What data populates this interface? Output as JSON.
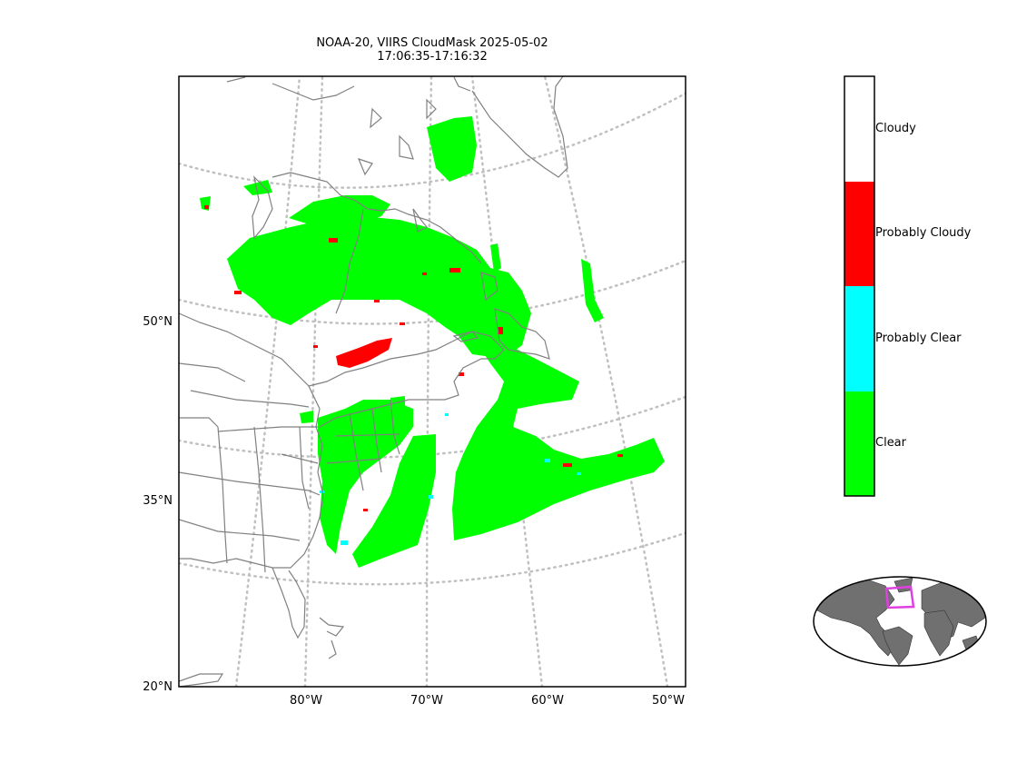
{
  "title": {
    "line1": "NOAA-20, VIIRS CloudMask 2025-05-02",
    "line2": "17:06:35-17:16:32"
  },
  "axes": {
    "lat_ticks": [
      "50°N",
      "35°N",
      "20°N"
    ],
    "lon_ticks": [
      "80°W",
      "70°W",
      "60°W",
      "50°W"
    ]
  },
  "legend": {
    "categories": [
      {
        "label": "Cloudy",
        "color": "#ffffff"
      },
      {
        "label": "Probably Cloudy",
        "color": "#ff0000"
      },
      {
        "label": "Probably Clear",
        "color": "#00ffff"
      },
      {
        "label": "Clear",
        "color": "#00ff00"
      }
    ]
  },
  "colors": {
    "coastline": "#808080",
    "graticule": "#c0c0c0",
    "overview_region": "#e040e0",
    "overview_land": "#707070"
  },
  "overview": {
    "projection": "robinson",
    "box_color_name": "magenta"
  }
}
